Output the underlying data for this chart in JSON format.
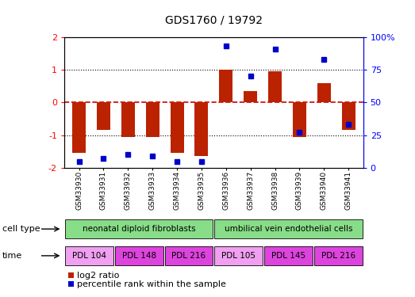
{
  "title": "GDS1760 / 19792",
  "samples": [
    "GSM33930",
    "GSM33931",
    "GSM33932",
    "GSM33933",
    "GSM33934",
    "GSM33935",
    "GSM33936",
    "GSM33937",
    "GSM33938",
    "GSM33939",
    "GSM33940",
    "GSM33941"
  ],
  "log2_ratio": [
    -1.55,
    -0.85,
    -1.05,
    -1.05,
    -1.55,
    -1.65,
    1.0,
    0.35,
    0.95,
    -1.05,
    0.6,
    -0.85
  ],
  "percentile": [
    5,
    7,
    10,
    9,
    5,
    5,
    93,
    70,
    91,
    27,
    83,
    33
  ],
  "ylim": [
    -2,
    2
  ],
  "yticks_left": [
    -2,
    -1,
    0,
    1,
    2
  ],
  "yticks_right": [
    0,
    25,
    50,
    75,
    100
  ],
  "bar_color": "#bb2200",
  "dot_color": "#0000cc",
  "hline_color": "#cc0000",
  "dotted_hline_vals": [
    -1,
    1
  ],
  "cell_type_groups": [
    {
      "label": "neonatal diploid fibroblasts",
      "start": 0,
      "end": 6,
      "color": "#88dd88"
    },
    {
      "label": "umbilical vein endothelial cells",
      "start": 6,
      "end": 12,
      "color": "#88dd88"
    }
  ],
  "time_groups": [
    {
      "label": "PDL 104",
      "start": 0,
      "end": 2,
      "color": "#f0a0f0"
    },
    {
      "label": "PDL 148",
      "start": 2,
      "end": 4,
      "color": "#dd44dd"
    },
    {
      "label": "PDL 216",
      "start": 4,
      "end": 6,
      "color": "#dd44dd"
    },
    {
      "label": "PDL 105",
      "start": 6,
      "end": 8,
      "color": "#f0a0f0"
    },
    {
      "label": "PDL 145",
      "start": 8,
      "end": 10,
      "color": "#dd44dd"
    },
    {
      "label": "PDL 216",
      "start": 10,
      "end": 12,
      "color": "#dd44dd"
    }
  ],
  "legend_bar_label": "log2 ratio",
  "legend_dot_label": "percentile rank within the sample",
  "cell_type_label": "cell type",
  "time_label": "time",
  "bar_width": 0.55,
  "figsize": [
    5.23,
    3.75
  ],
  "dpi": 100
}
